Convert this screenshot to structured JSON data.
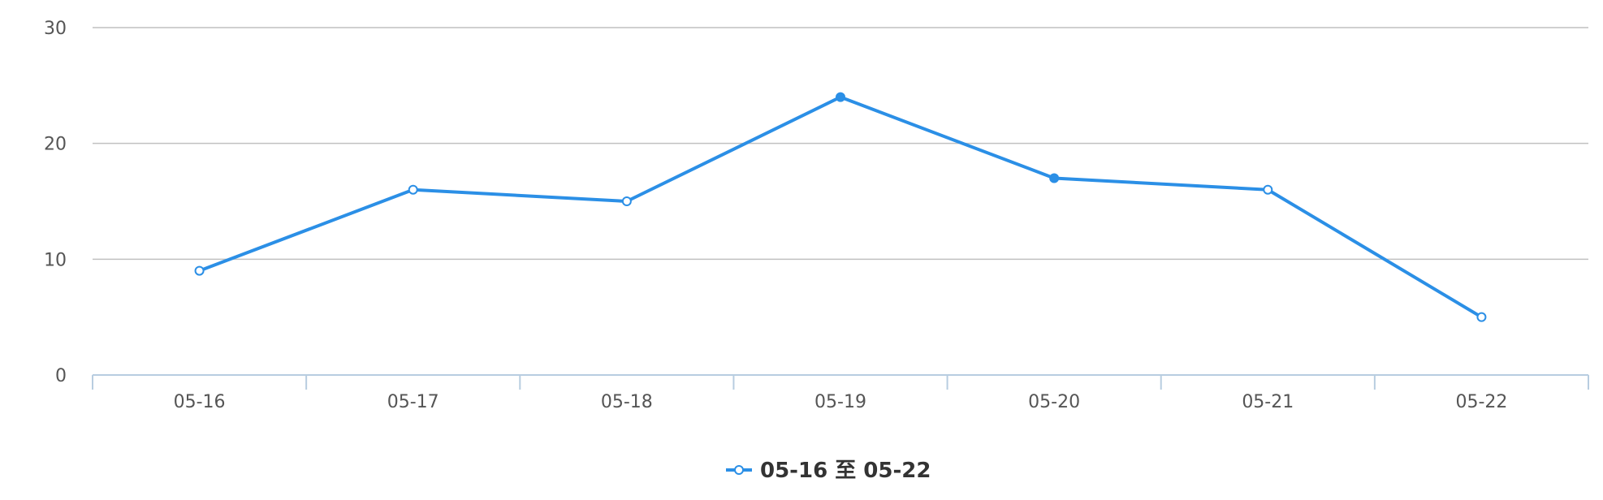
{
  "chart_data": {
    "type": "line",
    "categories": [
      "05-16",
      "05-17",
      "05-18",
      "05-19",
      "05-20",
      "05-21",
      "05-22"
    ],
    "series": [
      {
        "name": "05-16 至 05-22",
        "values": [
          9,
          16,
          15,
          24,
          17,
          16,
          5
        ],
        "color": "#2b8fe6"
      }
    ],
    "yticks": [
      "0",
      "10",
      "20",
      "30"
    ],
    "ylim": [
      0,
      30
    ],
    "grid": true,
    "legend_position": "bottom-center",
    "colors": {
      "grid": "#c0c0c0",
      "axis": "#b8cde0",
      "tick_text": "#555555",
      "legend_text": "#333333"
    }
  }
}
